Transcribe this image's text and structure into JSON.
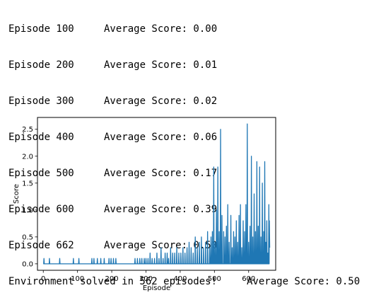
{
  "console": {
    "episodes": [
      {
        "episode": "Episode 100",
        "score": "Average Score: 0.00"
      },
      {
        "episode": "Episode 200",
        "score": "Average Score: 0.01"
      },
      {
        "episode": "Episode 300",
        "score": "Average Score: 0.02"
      },
      {
        "episode": "Episode 400",
        "score": "Average Score: 0.06"
      },
      {
        "episode": "Episode 500",
        "score": "Average Score: 0.17"
      },
      {
        "episode": "Episode 600",
        "score": "Average Score: 0.39"
      },
      {
        "episode": "Episode 662",
        "score": "Average Score: 0.50"
      }
    ],
    "solved_message": "Environment solved in 562 episodes!",
    "solved_score": "Average Score: 0.50"
  },
  "chart_data": {
    "type": "line",
    "title": "",
    "xlabel": "Episode",
    "ylabel": "Score",
    "xlim": [
      -17,
      679
    ],
    "ylim": [
      -0.12,
      2.72
    ],
    "xticks": [
      0,
      100,
      200,
      300,
      400,
      500,
      600
    ],
    "yticks": [
      0.0,
      0.5,
      1.0,
      1.5,
      2.0,
      2.5
    ],
    "ytick_labels": [
      "0.0",
      "0.5",
      "1.0",
      "1.5",
      "2.0",
      "2.5"
    ],
    "grid": false,
    "line_color": "#1f77b4",
    "peaks": [
      [
        2,
        0.1
      ],
      [
        18,
        0.1
      ],
      [
        48,
        0.1
      ],
      [
        88,
        0.1
      ],
      [
        104,
        0.1
      ],
      [
        142,
        0.1
      ],
      [
        148,
        0.1
      ],
      [
        158,
        0.1
      ],
      [
        168,
        0.1
      ],
      [
        178,
        0.1
      ],
      [
        192,
        0.1
      ],
      [
        198,
        0.1
      ],
      [
        205,
        0.1
      ],
      [
        212,
        0.1
      ],
      [
        268,
        0.1
      ],
      [
        275,
        0.1
      ],
      [
        282,
        0.1
      ],
      [
        288,
        0.1
      ],
      [
        295,
        0.1
      ],
      [
        300,
        0.1
      ],
      [
        306,
        0.1
      ],
      [
        312,
        0.2
      ],
      [
        318,
        0.1
      ],
      [
        325,
        0.1
      ],
      [
        332,
        0.2
      ],
      [
        338,
        0.1
      ],
      [
        344,
        0.3
      ],
      [
        350,
        0.1
      ],
      [
        356,
        0.2
      ],
      [
        362,
        0.2
      ],
      [
        366,
        0.1
      ],
      [
        372,
        0.3
      ],
      [
        378,
        0.2
      ],
      [
        384,
        0.2
      ],
      [
        390,
        0.3
      ],
      [
        396,
        0.2
      ],
      [
        402,
        0.2
      ],
      [
        408,
        0.3
      ],
      [
        414,
        0.2
      ],
      [
        420,
        0.3
      ],
      [
        426,
        0.4
      ],
      [
        432,
        0.3
      ],
      [
        438,
        0.2
      ],
      [
        444,
        0.5
      ],
      [
        450,
        0.3
      ],
      [
        456,
        0.4
      ],
      [
        462,
        0.5
      ],
      [
        468,
        0.3
      ],
      [
        474,
        0.4
      ],
      [
        480,
        0.6
      ],
      [
        486,
        0.3
      ],
      [
        490,
        0.5
      ],
      [
        494,
        0.6
      ],
      [
        498,
        1.8
      ],
      [
        502,
        0.4
      ],
      [
        506,
        1.0
      ],
      [
        510,
        1.8
      ],
      [
        514,
        0.6
      ],
      [
        518,
        2.5
      ],
      [
        522,
        0.9
      ],
      [
        527,
        0.6
      ],
      [
        531,
        0.5
      ],
      [
        535,
        0.7
      ],
      [
        539,
        1.1
      ],
      [
        543,
        0.4
      ],
      [
        548,
        0.9
      ],
      [
        552,
        0.3
      ],
      [
        556,
        0.6
      ],
      [
        560,
        0.5
      ],
      [
        564,
        0.8
      ],
      [
        568,
        0.4
      ],
      [
        572,
        0.9
      ],
      [
        576,
        1.1
      ],
      [
        580,
        0.3
      ],
      [
        584,
        0.8
      ],
      [
        588,
        0.6
      ],
      [
        592,
        1.1
      ],
      [
        596,
        2.6
      ],
      [
        600,
        0.4
      ],
      [
        604,
        0.7
      ],
      [
        608,
        2.0
      ],
      [
        612,
        0.5
      ],
      [
        616,
        1.3
      ],
      [
        620,
        0.6
      ],
      [
        624,
        1.9
      ],
      [
        628,
        0.7
      ],
      [
        632,
        1.8
      ],
      [
        636,
        0.5
      ],
      [
        640,
        1.5
      ],
      [
        644,
        0.6
      ],
      [
        647,
        1.9
      ],
      [
        650,
        0.4
      ],
      [
        653,
        0.8
      ],
      [
        656,
        0.2
      ],
      [
        659,
        1.1
      ]
    ]
  }
}
